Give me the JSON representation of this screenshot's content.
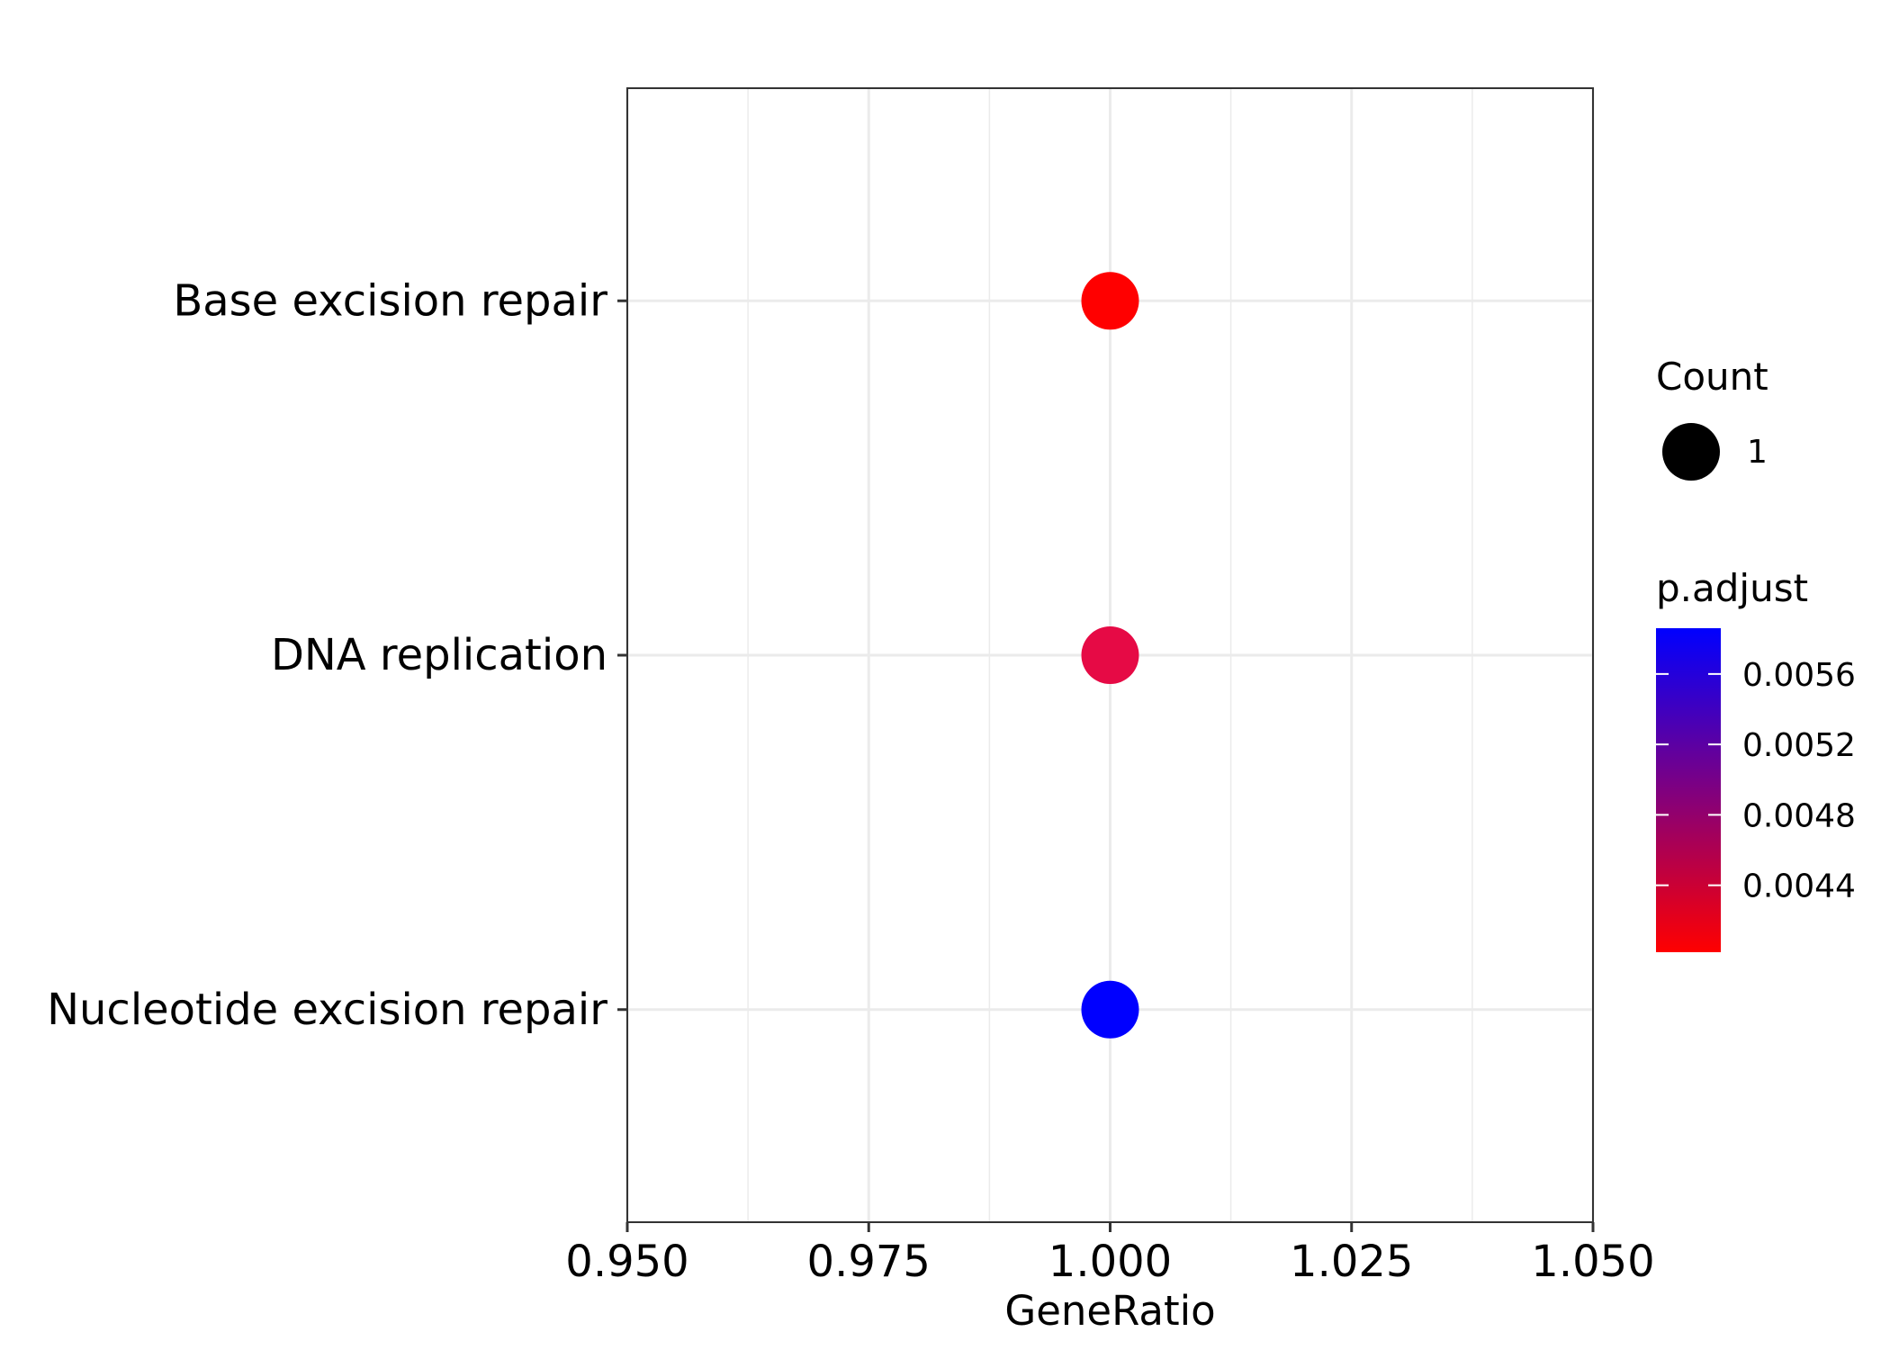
{
  "chart_data": {
    "type": "scatter",
    "subtype": "dot-plot",
    "title": "",
    "xlabel": "GeneRatio",
    "ylabel": "",
    "xlim": [
      0.95,
      1.05
    ],
    "x_ticks": [
      0.95,
      0.975,
      1.0,
      1.025,
      1.05
    ],
    "x_tick_labels": [
      "0.950",
      "0.975",
      "1.000",
      "1.025",
      "1.050"
    ],
    "categories": [
      "Base excision repair",
      "DNA replication",
      "Nucleotide excision repair"
    ],
    "points": [
      {
        "term": "Base excision repair",
        "gene_ratio": 1.0,
        "count": 1,
        "p_adjust": 0.00402,
        "color": "#ff0000"
      },
      {
        "term": "DNA replication",
        "gene_ratio": 1.0,
        "count": 1,
        "p_adjust": 0.00436,
        "color": "#e60a45"
      },
      {
        "term": "Nucleotide excision repair",
        "gene_ratio": 1.0,
        "count": 1,
        "p_adjust": 0.00586,
        "color": "#0000ff"
      }
    ],
    "grid": true,
    "legend": {
      "placement": "right",
      "size": {
        "title": "Count",
        "entries": [
          {
            "label": "1",
            "value": 1
          }
        ]
      },
      "color": {
        "title": "p.adjust",
        "range": [
          0.00402,
          0.00586
        ],
        "low_color": "#ff0000",
        "high_color": "#0000ff",
        "ticks": [
          0.0044,
          0.0048,
          0.0052,
          0.0056
        ],
        "tick_labels": [
          "0.0044",
          "0.0048",
          "0.0052",
          "0.0056"
        ]
      }
    }
  }
}
